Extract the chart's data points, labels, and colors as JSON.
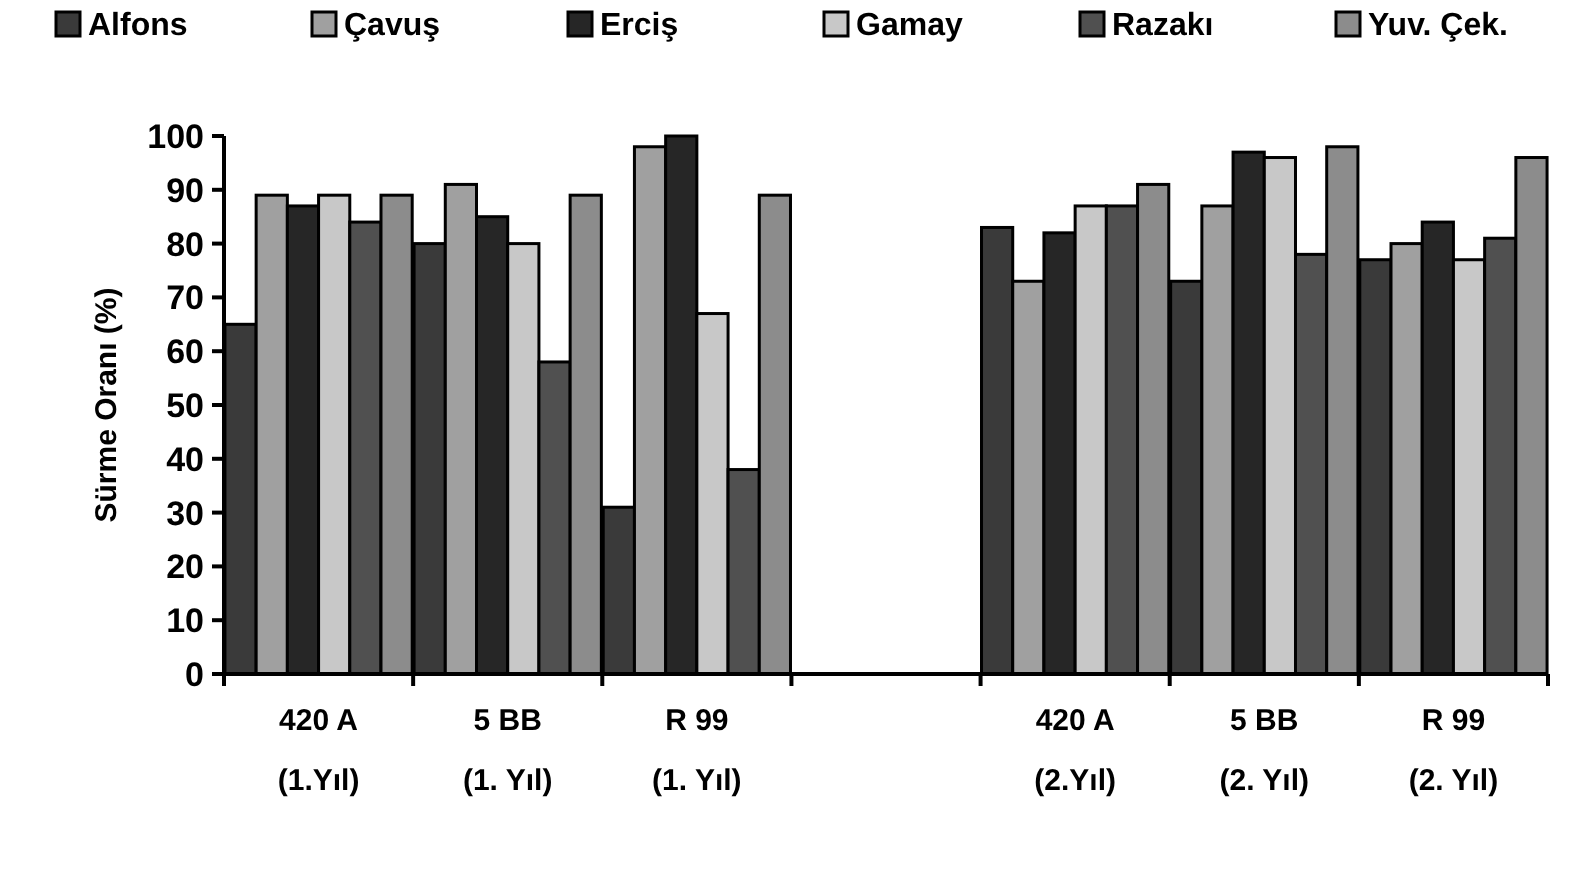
{
  "chart_data": {
    "type": "bar",
    "ylabel": "Sürme Oranı (%)",
    "categories": [
      "420 A\n(1.Yıl)",
      "5 BB\n(1. Yıl)",
      "R 99\n(1. Yıl)",
      null,
      "420 A\n(2.Yıl)",
      "5 BB\n(2. Yıl)",
      "R 99\n(2. Yıl)"
    ],
    "ylim": [
      0,
      100
    ],
    "yticks": [
      0,
      10,
      20,
      30,
      40,
      50,
      60,
      70,
      80,
      90,
      100
    ],
    "grid": false,
    "legend": "top",
    "series": [
      {
        "name": "Alfons",
        "color": "#3a3a3a",
        "values": [
          65,
          80,
          31,
          null,
          83,
          73,
          77
        ]
      },
      {
        "name": "Çavuş",
        "color": "#a0a0a0",
        "values": [
          89,
          91,
          98,
          null,
          73,
          87,
          80
        ]
      },
      {
        "name": "Erciş",
        "color": "#262626",
        "values": [
          87,
          85,
          100,
          null,
          82,
          97,
          84
        ]
      },
      {
        "name": "Gamay",
        "color": "#c8c8c8",
        "values": [
          89,
          80,
          67,
          null,
          87,
          96,
          77
        ]
      },
      {
        "name": "Razakı",
        "color": "#505050",
        "values": [
          84,
          58,
          38,
          null,
          87,
          78,
          81
        ]
      },
      {
        "name": "Yuv. Çek.",
        "color": "#8c8c8c",
        "values": [
          89,
          89,
          89,
          null,
          91,
          98,
          96
        ]
      }
    ]
  }
}
